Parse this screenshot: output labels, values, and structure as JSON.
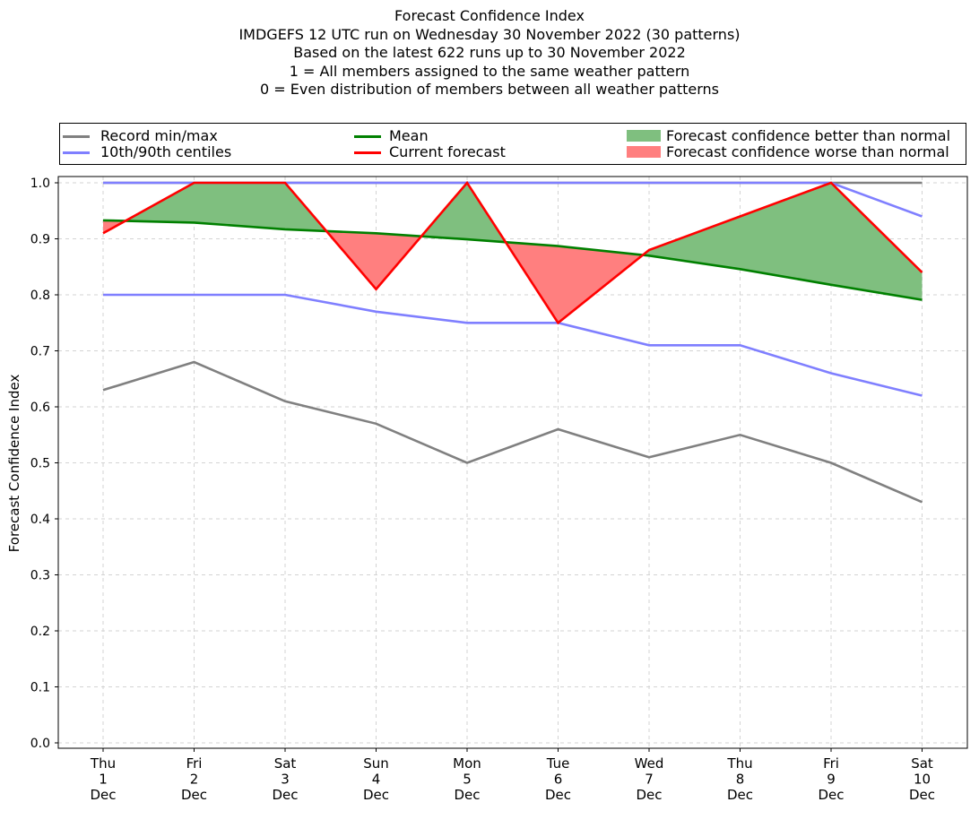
{
  "title_lines": [
    "Forecast Confidence Index",
    "IMDGEFS 12 UTC run on Wednesday 30 November 2022 (30 patterns)",
    "Based on the latest 622 runs up to 30 November 2022",
    "1 = All members assigned to the same weather pattern",
    "0 = Even distribution of members between all weather patterns"
  ],
  "legend": {
    "record": "Record min/max",
    "centiles": "10th/90th centiles",
    "mean": "Mean",
    "current": "Current forecast",
    "better": "Forecast confidence better than normal",
    "worse": "Forecast confidence worse than normal"
  },
  "colors": {
    "record": "#808080",
    "centiles": "#7f7fff",
    "mean": "#008000",
    "current": "#ff0000",
    "better": "#7fbf7f",
    "worse": "#ff7f7f",
    "grid": "#d3d3d3"
  },
  "chart_data": {
    "type": "line",
    "ylabel": "Forecast Confidence Index",
    "xlabel": "",
    "ylim": [
      0,
      1.0
    ],
    "yticks": [
      "0.0",
      "0.1",
      "0.2",
      "0.3",
      "0.4",
      "0.5",
      "0.6",
      "0.7",
      "0.8",
      "0.9",
      "1.0"
    ],
    "grid": true,
    "legend_position": "top",
    "categories": [
      [
        "Thu",
        "1",
        "Dec"
      ],
      [
        "Fri",
        "2",
        "Dec"
      ],
      [
        "Sat",
        "3",
        "Dec"
      ],
      [
        "Sun",
        "4",
        "Dec"
      ],
      [
        "Mon",
        "5",
        "Dec"
      ],
      [
        "Tue",
        "6",
        "Dec"
      ],
      [
        "Wed",
        "7",
        "Dec"
      ],
      [
        "Thu",
        "8",
        "Dec"
      ],
      [
        "Fri",
        "9",
        "Dec"
      ],
      [
        "Sat",
        "10",
        "Dec"
      ]
    ],
    "series": [
      {
        "name": "Record min/max",
        "key": "record_min",
        "values": [
          0.63,
          0.68,
          0.61,
          0.57,
          0.5,
          0.56,
          0.51,
          0.55,
          0.5,
          0.43
        ]
      },
      {
        "name": "Record min/max",
        "key": "record_max",
        "values": [
          1.0,
          1.0,
          1.0,
          1.0,
          1.0,
          1.0,
          1.0,
          1.0,
          1.0,
          1.0
        ]
      },
      {
        "name": "10th/90th centiles",
        "key": "p10",
        "values": [
          0.8,
          0.8,
          0.8,
          0.77,
          0.75,
          0.75,
          0.71,
          0.71,
          0.66,
          0.62
        ]
      },
      {
        "name": "10th/90th centiles",
        "key": "p90",
        "values": [
          1.0,
          1.0,
          1.0,
          1.0,
          1.0,
          1.0,
          1.0,
          1.0,
          1.0,
          0.94
        ]
      },
      {
        "name": "Mean",
        "key": "mean",
        "values": [
          0.933,
          0.929,
          0.917,
          0.91,
          0.899,
          0.887,
          0.87,
          0.846,
          0.818,
          0.791
        ]
      },
      {
        "name": "Current forecast",
        "key": "current",
        "values": [
          0.91,
          1.0,
          1.0,
          0.81,
          1.0,
          0.75,
          0.88,
          0.94,
          1.0,
          0.84
        ]
      }
    ]
  }
}
